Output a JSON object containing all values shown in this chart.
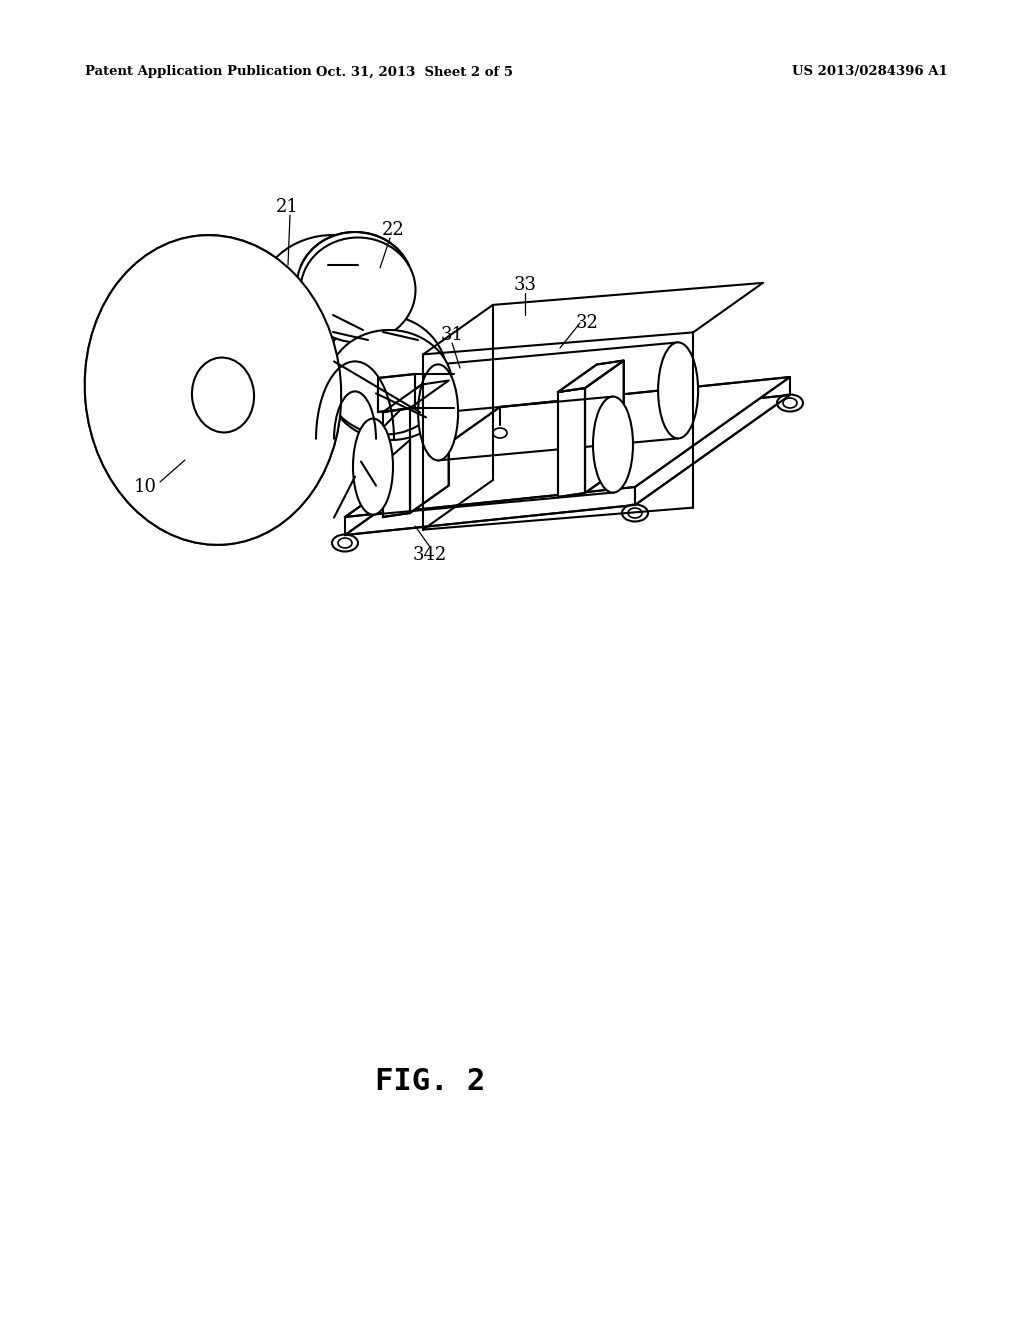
{
  "bg_color": "#ffffff",
  "line_color": "#000000",
  "header_left": "Patent Application Publication",
  "header_mid": "Oct. 31, 2013  Sheet 2 of 5",
  "header_right": "US 2013/0284396 A1",
  "fig_label": "FIG. 2",
  "lw": 1.5
}
